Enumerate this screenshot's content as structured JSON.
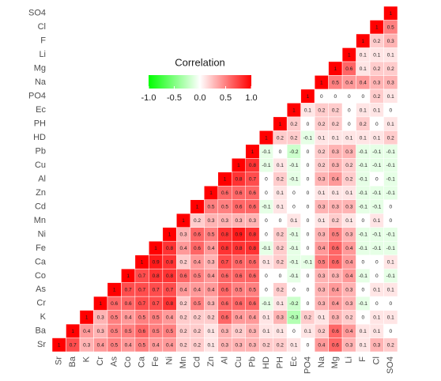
{
  "chart_data": {
    "type": "heatmap",
    "categories": [
      "Sr",
      "Ba",
      "K",
      "Cr",
      "As",
      "Co",
      "Ca",
      "Fe",
      "Ni",
      "Mn",
      "Cd",
      "Zn",
      "Al",
      "Cu",
      "Pb",
      "HD",
      "PH",
      "Ec",
      "PO4",
      "Na",
      "Mg",
      "Li",
      "F",
      "Cl",
      "SO4"
    ],
    "values": [
      [
        1,
        0.7,
        0.3,
        0.4,
        0.5,
        0.4,
        0.5,
        0.4,
        0.4,
        0.2,
        0.2,
        0.1,
        0.3,
        0.3,
        0.3,
        0.2,
        0.2,
        0.1,
        0,
        0.4,
        0.6,
        0.3,
        0.1,
        0.3,
        0.2
      ],
      [
        1,
        0.4,
        0.3,
        0.5,
        0.5,
        0.6,
        0.5,
        0.5,
        0.2,
        0.2,
        0.1,
        0.3,
        0.2,
        0.3,
        0.1,
        0.1,
        0,
        0.1,
        0.2,
        0.6,
        0.4,
        0.1,
        0.1,
        0
      ],
      [
        1,
        0.3,
        0.5,
        0.4,
        0.5,
        0.5,
        0.4,
        0.2,
        0.2,
        0.2,
        0.6,
        0.4,
        0.4,
        0.1,
        0.3,
        -0.3,
        0.2,
        0.1,
        0.3,
        0.2,
        0,
        0.1,
        0.1
      ],
      [
        1,
        0.6,
        0.6,
        0.7,
        0.7,
        0.8,
        0.2,
        0.5,
        0.3,
        0.6,
        0.6,
        0.6,
        -0.1,
        0.1,
        -0.2,
        0,
        0.3,
        0.4,
        0.3,
        -0.1,
        0,
        0
      ],
      [
        1,
        0.7,
        0.7,
        0.7,
        0.7,
        0.4,
        0.4,
        0.4,
        0.6,
        0.5,
        0.5,
        0,
        0.2,
        0,
        0,
        0.3,
        0.4,
        0.3,
        0,
        0.1,
        0.1
      ],
      [
        1,
        0.7,
        0.8,
        0.8,
        0.6,
        0.5,
        0.4,
        0.6,
        0.6,
        0.6,
        0,
        0,
        -0.1,
        0,
        0.3,
        0.3,
        0.4,
        -0.1,
        0,
        -0.1
      ],
      [
        1,
        0.9,
        0.8,
        0.2,
        0.4,
        0.3,
        0.7,
        0.6,
        0.6,
        0.1,
        0.2,
        -0.1,
        -0.1,
        0.5,
        0.6,
        0.4,
        0,
        0,
        0.1
      ],
      [
        1,
        0.8,
        0.4,
        0.6,
        0.4,
        0.8,
        0.8,
        0.8,
        -0.1,
        0.2,
        -0.1,
        0,
        0.4,
        0.6,
        0.4,
        -0.1,
        -0.1,
        -0.1
      ],
      [
        1,
        0.3,
        0.6,
        0.5,
        0.8,
        0.9,
        0.8,
        0,
        0.2,
        -0.1,
        0,
        0.3,
        0.5,
        0.3,
        -0.1,
        -0.1,
        -0.1
      ],
      [
        1,
        0.2,
        0.3,
        0.3,
        0.3,
        0.3,
        0,
        0,
        0.1,
        0,
        0.1,
        0.2,
        0.1,
        0,
        0.1,
        0
      ],
      [
        1,
        0.5,
        0.5,
        0.6,
        0.6,
        -0.1,
        0.1,
        0,
        0,
        0.3,
        0.3,
        0.3,
        -0.1,
        -0.1,
        0
      ],
      [
        1,
        0.6,
        0.6,
        0.6,
        0,
        0.1,
        0,
        0,
        0.1,
        0.1,
        0.1,
        -0.1,
        -0.1,
        -0.1
      ],
      [
        1,
        0.8,
        0.7,
        0,
        0.2,
        -0.1,
        0,
        0.3,
        0.4,
        0.2,
        -0.1,
        0,
        -0.1
      ],
      [
        1,
        0.8,
        -0.1,
        0.1,
        -0.1,
        0,
        0.2,
        0.3,
        0.2,
        -0.1,
        -0.1,
        -0.1
      ],
      [
        1,
        -0.1,
        0,
        -0.2,
        0,
        0.2,
        0.3,
        0.3,
        -0.1,
        -0.1,
        -0.1
      ],
      [
        1,
        0.2,
        0.2,
        -0.1,
        0.1,
        0.1,
        0.1,
        0.1,
        0.1,
        0.2
      ],
      [
        1,
        0.2,
        0,
        0.2,
        0.2,
        0,
        0.2,
        0,
        0.1
      ],
      [
        1,
        0.1,
        0.2,
        0.2,
        0,
        0.1,
        0.1,
        0
      ],
      [
        1,
        0,
        0,
        0,
        0,
        0.2,
        0.1
      ],
      [
        1,
        0.5,
        0.4,
        0.4,
        0.3,
        0.3
      ],
      [
        1,
        0.6,
        0.1,
        0.2,
        0.2
      ],
      [
        1,
        0.1,
        0.1,
        0.1
      ],
      [
        1,
        0.2,
        0.3
      ],
      [
        1,
        0.5
      ],
      [
        1
      ]
    ],
    "clim": [
      -1,
      1
    ],
    "colors": [
      "#00ff00",
      "#ffffff",
      "#ff0000"
    ],
    "legend": {
      "title": "Correlation",
      "ticks": [
        {
          "value": -1,
          "label": "-1.0"
        },
        -0.5,
        {
          "value": 0,
          "label": "0.0"
        },
        0.5,
        {
          "value": 1,
          "label": "1.0"
        }
      ]
    }
  }
}
